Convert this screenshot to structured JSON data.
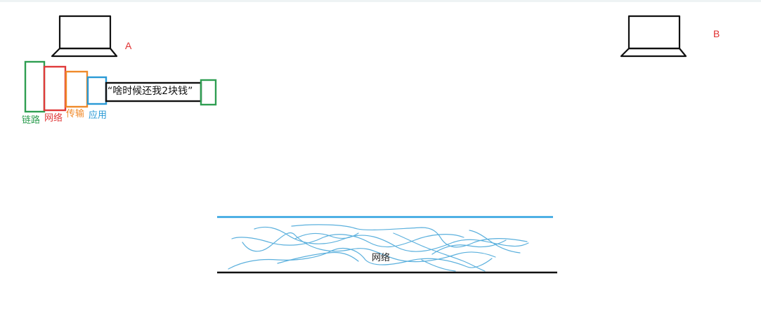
{
  "hosts": {
    "a_label": "A",
    "b_label": "B"
  },
  "layers": {
    "link": "链路",
    "network": "网络",
    "transport": "传输",
    "application": "应用"
  },
  "message": "“啥时候还我2块钱”",
  "network_label": "网络",
  "colors": {
    "link": "#2f9e52",
    "network": "#e03a3a",
    "transport": "#f08a2a",
    "application": "#2a9ad6",
    "host_label": "#e03030",
    "wire": "#5bb0dd"
  }
}
